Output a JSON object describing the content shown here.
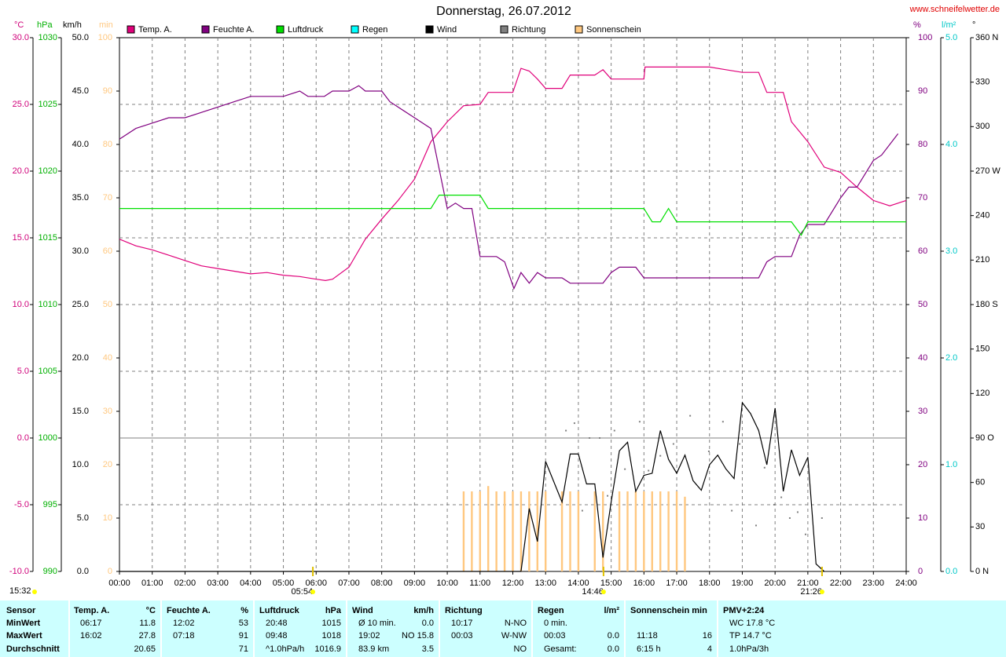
{
  "chart_data": {
    "type": "line",
    "title": "Donnerstag, 26.07.2012",
    "source": "www.schneifelwetter.de",
    "timestamp": "15:32",
    "xlim": [
      0,
      24
    ],
    "xticks": [
      {
        "value": 0,
        "label": "00:00"
      },
      {
        "value": 1,
        "label": "01:00"
      },
      {
        "value": 2,
        "label": "02:00"
      },
      {
        "value": 3,
        "label": "03:00"
      },
      {
        "value": 4,
        "label": "04:00"
      },
      {
        "value": 5,
        "label": "05:00"
      },
      {
        "value": 6,
        "label": "06:00"
      },
      {
        "value": 7,
        "label": "07:00"
      },
      {
        "value": 8,
        "label": "08:00"
      },
      {
        "value": 9,
        "label": "09:00"
      },
      {
        "value": 10,
        "label": "10:00"
      },
      {
        "value": 11,
        "label": "11:00"
      },
      {
        "value": 12,
        "label": "12:00"
      },
      {
        "value": 13,
        "label": "13:00"
      },
      {
        "value": 14,
        "label": "14:00"
      },
      {
        "value": 15,
        "label": "15:00"
      },
      {
        "value": 16,
        "label": "16:00"
      },
      {
        "value": 17,
        "label": "17:00"
      },
      {
        "value": 18,
        "label": "18:00"
      },
      {
        "value": 19,
        "label": "19:00"
      },
      {
        "value": 20,
        "label": "20:00"
      },
      {
        "value": 21,
        "label": "21:00"
      },
      {
        "value": 22,
        "label": "22:00"
      },
      {
        "value": 23,
        "label": "23:00"
      },
      {
        "value": 24,
        "label": "24:00"
      }
    ],
    "grid": true,
    "annotations": [
      {
        "label": "05:54",
        "x": 5.9
      },
      {
        "label": "14:46",
        "x": 14.767
      },
      {
        "label": "21:26",
        "x": 21.433
      }
    ],
    "axes": {
      "temp": {
        "label": "°C",
        "color": "#d0007a",
        "lim": [
          -10,
          30
        ],
        "ticks": [
          {
            "value": -10,
            "label": "-10.0"
          },
          {
            "value": -5,
            "label": "-5.0"
          },
          {
            "value": 0,
            "label": "0.0"
          },
          {
            "value": 5,
            "label": "5.0"
          },
          {
            "value": 10,
            "label": "10.0"
          },
          {
            "value": 15,
            "label": "15.0"
          },
          {
            "value": 20,
            "label": "20.0"
          },
          {
            "value": 25,
            "label": "25.0"
          },
          {
            "value": 30,
            "label": "30.0"
          }
        ]
      },
      "pressure": {
        "label": "hPa",
        "color": "#00b000",
        "lim": [
          990,
          1030
        ],
        "ticks": [
          990,
          995,
          1000,
          1005,
          1010,
          1015,
          1020,
          1025,
          1030
        ]
      },
      "wind": {
        "label": "km/h",
        "color": "#000000",
        "lim": [
          0,
          50
        ],
        "ticks": [
          {
            "value": 0,
            "label": "0.0"
          },
          {
            "value": 5,
            "label": "5.0"
          },
          {
            "value": 10,
            "label": "10.0"
          },
          {
            "value": 15,
            "label": "15.0"
          },
          {
            "value": 20,
            "label": "20.0"
          },
          {
            "value": 25,
            "label": "25.0"
          },
          {
            "value": 30,
            "label": "30.0"
          },
          {
            "value": 35,
            "label": "35.0"
          },
          {
            "value": 40,
            "label": "40.0"
          },
          {
            "value": 45,
            "label": "45.0"
          },
          {
            "value": 50,
            "label": "50.0"
          }
        ]
      },
      "sun": {
        "label": "min",
        "color": "#ffc880",
        "lim": [
          0,
          100
        ],
        "ticks": [
          0,
          10,
          20,
          30,
          40,
          50,
          60,
          70,
          80,
          90,
          100
        ]
      },
      "humidity": {
        "label": "%",
        "color": "#800080",
        "lim": [
          0,
          100
        ],
        "ticks": [
          0,
          10,
          20,
          30,
          40,
          50,
          60,
          70,
          80,
          90,
          100
        ]
      },
      "rain": {
        "label": "l/m²",
        "color": "#00c8c8",
        "lim": [
          0,
          5
        ],
        "ticks": [
          {
            "value": 0,
            "label": "0.0"
          },
          {
            "value": 1,
            "label": "1.0"
          },
          {
            "value": 2,
            "label": "2.0"
          },
          {
            "value": 3,
            "label": "3.0"
          },
          {
            "value": 4,
            "label": "4.0"
          },
          {
            "value": 5,
            "label": "5.0"
          }
        ]
      },
      "direction": {
        "label": "°",
        "color": "#000000",
        "lim": [
          0,
          360
        ],
        "ticks": [
          {
            "value": 0,
            "label": "0 N"
          },
          30,
          60,
          {
            "value": 90,
            "label": "90 O"
          },
          120,
          150,
          {
            "value": 180,
            "label": "180 S"
          },
          210,
          240,
          {
            "value": 270,
            "label": "270 W"
          },
          300,
          330,
          {
            "value": 360,
            "label": "360 N"
          }
        ]
      }
    },
    "series": [
      {
        "name": "Temp. A.",
        "color": "#e0007a",
        "type": "line",
        "axis": "temp",
        "x": [
          0,
          0.5,
          1,
          1.5,
          2,
          2.5,
          3,
          3.5,
          4,
          4.5,
          5,
          5.5,
          6,
          6.283,
          6.5,
          7,
          7.5,
          8,
          8.5,
          9,
          9.5,
          10,
          10.5,
          11,
          11.25,
          12,
          12.25,
          12.5,
          12.75,
          13,
          13.5,
          13.75,
          14.5,
          14.75,
          15,
          15.5,
          16,
          16.033,
          17,
          18,
          18.5,
          19,
          19.5,
          19.75,
          20.25,
          20.5,
          21,
          21.5,
          22,
          22.5,
          23,
          23.5,
          24
        ],
        "values": [
          14.9,
          14.4,
          14.1,
          13.7,
          13.3,
          12.9,
          12.7,
          12.5,
          12.3,
          12.4,
          12.2,
          12.1,
          11.9,
          11.8,
          11.9,
          12.8,
          14.9,
          16.4,
          17.8,
          19.4,
          22.2,
          23.7,
          24.9,
          25.0,
          25.9,
          25.9,
          27.7,
          27.5,
          26.9,
          26.2,
          26.2,
          27.2,
          27.2,
          27.6,
          26.9,
          26.9,
          26.9,
          27.8,
          27.8,
          27.8,
          27.6,
          27.4,
          27.4,
          25.9,
          25.9,
          23.7,
          22.2,
          20.3,
          19.9,
          18.8,
          17.8,
          17.4,
          17.8
        ]
      },
      {
        "name": "Feuchte A.",
        "color": "#800080",
        "type": "line",
        "axis": "humidity",
        "x": [
          0,
          0.5,
          1,
          1.5,
          2,
          2.5,
          3,
          3.5,
          4,
          5,
          5.5,
          5.75,
          6.25,
          6.5,
          7,
          7.3,
          7.5,
          8,
          8.25,
          8.5,
          9,
          9.5,
          10,
          10.25,
          10.5,
          10.75,
          11,
          11.5,
          11.75,
          12.033,
          12.25,
          12.5,
          12.75,
          13,
          13.5,
          13.75,
          14.75,
          15,
          15.25,
          15.75,
          16,
          19.5,
          19.75,
          20,
          20.5,
          20.75,
          21,
          21.5,
          22,
          22.25,
          22.5,
          23,
          23.25,
          23.75
        ],
        "values": [
          81,
          83,
          84,
          85,
          85,
          86,
          87,
          88,
          89,
          89,
          90,
          89,
          89,
          90,
          90,
          91,
          90,
          90,
          88,
          87,
          85,
          83,
          68,
          69,
          68,
          68,
          59,
          59,
          58,
          53,
          56,
          54,
          56,
          55,
          55,
          54,
          54,
          56,
          57,
          57,
          55,
          55,
          58,
          59,
          59,
          63,
          65,
          65,
          70,
          72,
          72,
          77,
          78,
          82
        ]
      },
      {
        "name": "Luftdruck",
        "color": "#00e000",
        "type": "line",
        "axis": "pressure",
        "x": [
          0,
          9.5,
          9.75,
          11,
          11.25,
          16,
          16.25,
          16.5,
          16.75,
          17,
          20.5,
          20.8,
          21,
          24
        ],
        "values": [
          1017.2,
          1017.2,
          1018.2,
          1018.2,
          1017.2,
          1017.2,
          1016.2,
          1016.2,
          1017.2,
          1016.2,
          1016.2,
          1015.2,
          1016.2,
          1016.2
        ]
      },
      {
        "name": "Regen",
        "color": "#00ffff",
        "type": "line",
        "axis": "rain"
      },
      {
        "name": "Wind",
        "color": "#000000",
        "type": "line",
        "axis": "wind",
        "x": [
          0,
          12.25,
          12.5,
          12.75,
          13,
          13.5,
          13.75,
          14,
          14.25,
          14.5,
          14.75,
          15,
          15.25,
          15.5,
          15.75,
          16,
          16.25,
          16.5,
          16.75,
          17,
          17.25,
          17.5,
          17.75,
          18,
          18.25,
          18.5,
          18.75,
          19,
          19.25,
          19.5,
          19.75,
          20,
          20.25,
          20.5,
          20.75,
          21,
          21.25,
          21.5
        ],
        "values": [
          0,
          0,
          5.9,
          2.8,
          10.3,
          6.5,
          11.0,
          11.0,
          8.2,
          8.2,
          1.3,
          6.5,
          11.3,
          12.1,
          7.5,
          9.0,
          9.2,
          13.2,
          10.5,
          9.2,
          10.9,
          8.5,
          7.6,
          10.0,
          10.9,
          9.6,
          8.7,
          15.8,
          14.8,
          13.2,
          10.0,
          15.3,
          7.5,
          11.4,
          9.0,
          10.7,
          0.7,
          0
        ]
      },
      {
        "name": "Richtung",
        "color": "#808080",
        "type": "scatter",
        "axis": "direction",
        "x": [
          13.62,
          13.88,
          14.12,
          14.34,
          14.65,
          14.89,
          15.1,
          15.42,
          15.87,
          16.14,
          16.5,
          16.9,
          17.41,
          17.98,
          18.41,
          18.68,
          18.92,
          19.42,
          19.68,
          19.97,
          20.19,
          20.45,
          20.69,
          20.93,
          21.43
        ],
        "values": [
          95,
          100,
          41,
          90,
          90,
          51,
          95,
          69,
          101,
          68,
          78,
          86,
          105,
          81,
          101,
          41,
          86,
          31,
          70,
          45,
          50,
          36,
          40,
          25,
          36
        ]
      },
      {
        "name": "Sonnenschein",
        "color": "#ffc880",
        "type": "bar",
        "axis": "sun",
        "x": [
          10.5,
          10.75,
          11,
          11.25,
          11.5,
          11.75,
          12,
          12.25,
          12.5,
          12.75,
          13,
          13.5,
          13.75,
          14,
          14.5,
          14.75,
          15.25,
          15.5,
          15.75,
          16,
          16.25,
          16.5,
          16.75,
          17,
          17.25
        ],
        "values": [
          15,
          15,
          15,
          16,
          15,
          15,
          15,
          15,
          15,
          15,
          15,
          15,
          15,
          15,
          15,
          15,
          15,
          15,
          15,
          15,
          15,
          15,
          15,
          15,
          14
        ]
      }
    ]
  },
  "table": {
    "groups": [
      {
        "title": "Sensor",
        "rows": [
          [
            "MinWert"
          ],
          [
            "MaxWert"
          ],
          [
            "Durchschnitt"
          ]
        ]
      },
      {
        "title": "Temp. A.",
        "unit": "°C",
        "rows": [
          [
            "06:17",
            "11.8"
          ],
          [
            "16:02",
            "27.8"
          ],
          [
            null,
            "20.65"
          ]
        ]
      },
      {
        "title": "Feuchte A.",
        "unit": "%",
        "rows": [
          [
            "12:02",
            "53"
          ],
          [
            "07:18",
            "91"
          ],
          [
            null,
            "71"
          ]
        ]
      },
      {
        "title": "Luftdruck",
        "unit": "hPa",
        "rows": [
          [
            "20:48",
            "1015"
          ],
          [
            "09:48",
            "1018"
          ],
          [
            "^1.0hPa/h",
            "1016.9"
          ]
        ]
      },
      {
        "title": "Wind",
        "unit": "km/h",
        "rows": [
          [
            "Ø 10 min.",
            "0.0"
          ],
          [
            "19:02",
            "NO 15.8"
          ],
          [
            "83.9 km",
            "3.5"
          ]
        ]
      },
      {
        "title": "Richtung",
        "rows": [
          [
            "10:17",
            "N-NO"
          ],
          [
            "00:03",
            "W-NW"
          ],
          [
            null,
            "NO"
          ]
        ]
      },
      {
        "title": "Regen",
        "unit": "l/m²",
        "rows": [
          [
            "0 min.",
            null
          ],
          [
            "00:03",
            "0.0"
          ],
          [
            "Gesamt:",
            "0.0"
          ]
        ]
      },
      {
        "title": "Sonnenschein min",
        "rows": [
          [
            null,
            null
          ],
          [
            "11:18",
            "16"
          ],
          [
            "6:15 h",
            "4"
          ]
        ]
      },
      {
        "title": "PMV+2:24",
        "rows": [
          [
            "WC 17.8 °C"
          ],
          [
            "TP 14.7 °C"
          ],
          [
            "1.0hPa/3h"
          ]
        ]
      }
    ]
  }
}
